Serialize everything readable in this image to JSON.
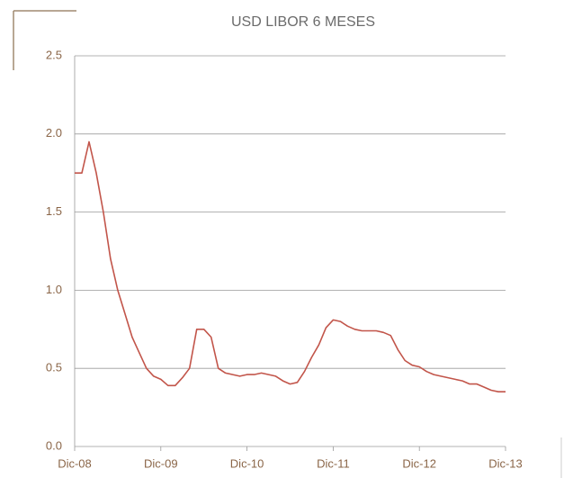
{
  "chart_data": {
    "type": "line",
    "title": "USD LIBOR 6 MESES",
    "categories": [
      "Dic-08",
      null,
      null,
      null,
      null,
      null,
      null,
      null,
      null,
      null,
      null,
      null,
      "Dic-09",
      null,
      null,
      null,
      null,
      null,
      null,
      null,
      null,
      null,
      null,
      null,
      "Dic-10",
      null,
      null,
      null,
      null,
      null,
      null,
      null,
      null,
      null,
      null,
      null,
      "Dic-11",
      null,
      null,
      null,
      null,
      null,
      null,
      null,
      null,
      null,
      null,
      null,
      "Dic-12",
      null,
      null,
      null,
      null,
      null,
      null,
      null,
      null,
      null,
      null,
      null,
      "Dic-13"
    ],
    "series": [
      {
        "name": "USD LIBOR 6 MESES",
        "color": "#c2554a",
        "values": [
          1.75,
          1.75,
          1.95,
          1.75,
          1.5,
          1.2,
          1.0,
          0.85,
          0.7,
          0.6,
          0.5,
          0.45,
          0.43,
          0.39,
          0.39,
          0.44,
          0.5,
          0.75,
          0.75,
          0.7,
          0.5,
          0.47,
          0.46,
          0.45,
          0.46,
          0.46,
          0.47,
          0.46,
          0.45,
          0.42,
          0.4,
          0.41,
          0.48,
          0.57,
          0.65,
          0.76,
          0.81,
          0.8,
          0.77,
          0.75,
          0.74,
          0.74,
          0.74,
          0.73,
          0.71,
          0.62,
          0.55,
          0.52,
          0.51,
          0.48,
          0.46,
          0.45,
          0.44,
          0.43,
          0.42,
          0.4,
          0.4,
          0.38,
          0.36,
          0.35,
          0.35
        ]
      }
    ],
    "ylim": [
      0,
      2.5
    ],
    "yticks": [
      {
        "value": 0,
        "label": "0.0"
      },
      0.5,
      {
        "value": 1,
        "label": "1.0"
      },
      1.5,
      {
        "value": 2,
        "label": "2.0"
      },
      2.5
    ],
    "grid": true
  }
}
